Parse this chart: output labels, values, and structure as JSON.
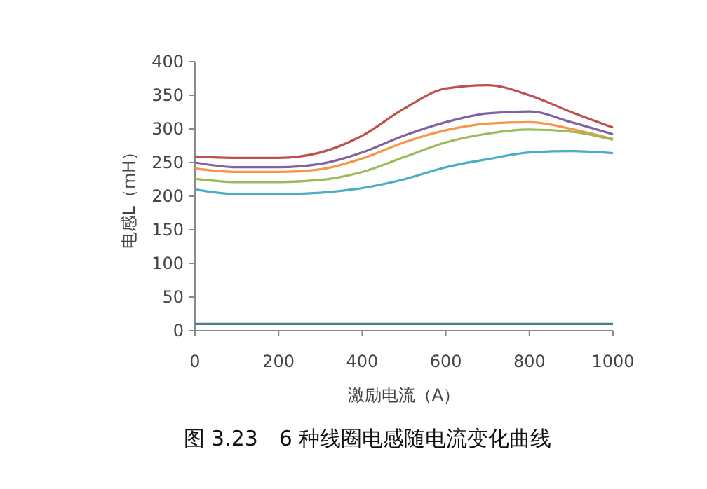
{
  "chart_data": {
    "type": "line",
    "title": "图 3.23　6 种线圈电感随电流变化曲线",
    "xlabel": "激励电流（A）",
    "ylabel": "电感L（mH）",
    "x": [
      0,
      100,
      200,
      300,
      400,
      500,
      600,
      700,
      800,
      900,
      1000
    ],
    "xlim": [
      0,
      1000
    ],
    "xticks": [
      0,
      200,
      400,
      600,
      800,
      1000
    ],
    "ylim": [
      0,
      400
    ],
    "yticks": [
      0,
      50,
      100,
      150,
      200,
      250,
      300,
      350,
      400
    ],
    "grid": false,
    "marker": "none",
    "line_style": "solid",
    "series": [
      {
        "color": "#c0504d",
        "values": [
          259,
          257,
          257,
          265,
          290,
          330,
          360,
          365,
          350,
          325,
          302
        ]
      },
      {
        "color": "#8064a2",
        "values": [
          250,
          243,
          243,
          248,
          265,
          290,
          310,
          323,
          326,
          310,
          292
        ]
      },
      {
        "color": "#f79646",
        "values": [
          241,
          236,
          236,
          240,
          256,
          280,
          298,
          308,
          310,
          300,
          285
        ]
      },
      {
        "color": "#9bbb59",
        "values": [
          226,
          221,
          221,
          224,
          236,
          258,
          280,
          293,
          299,
          296,
          284
        ]
      },
      {
        "color": "#4bacc6",
        "values": [
          210,
          203,
          203,
          205,
          212,
          225,
          243,
          255,
          265,
          267,
          264
        ]
      },
      {
        "color": "#4a7d8c",
        "values": [
          10,
          10,
          10,
          10,
          10,
          10,
          10,
          10,
          10,
          10,
          10
        ]
      }
    ]
  }
}
